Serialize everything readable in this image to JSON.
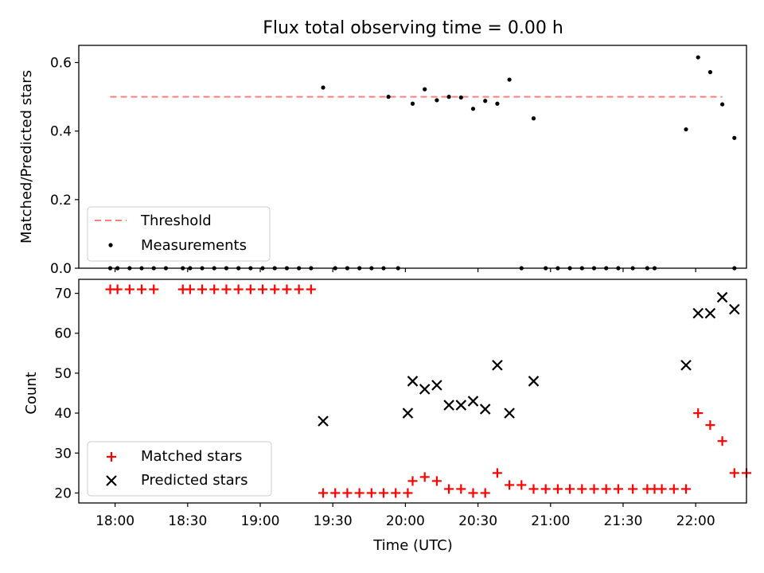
{
  "figure": {
    "title": "Flux total observing time = 0.00 h",
    "xlabel": "Time (UTC)",
    "xticks": [
      {
        "value": 1080,
        "label": "18:00"
      },
      {
        "value": 1110,
        "label": "18:30"
      },
      {
        "value": 1140,
        "label": "19:00"
      },
      {
        "value": 1170,
        "label": "19:30"
      },
      {
        "value": 1200,
        "label": "20:00"
      },
      {
        "value": 1230,
        "label": "20:30"
      },
      {
        "value": 1260,
        "label": "21:00"
      },
      {
        "value": 1290,
        "label": "21:30"
      },
      {
        "value": 1320,
        "label": "22:00"
      }
    ],
    "xlim": [
      1065,
      1341
    ]
  },
  "chart_data": [
    {
      "type": "scatter",
      "ylabel": "Matched/Predicted stars",
      "ylim": [
        0,
        0.65
      ],
      "yticks": [
        0.0,
        0.2,
        0.4,
        0.6
      ],
      "ytick_labels": [
        "0.0",
        "0.2",
        "0.4",
        "0.6"
      ],
      "legend": {
        "placement": "lower-left",
        "entries": [
          "Threshold",
          "Measurements"
        ]
      },
      "threshold": {
        "name": "Threshold",
        "value": 0.5,
        "x_range": [
          1078,
          1331
        ],
        "color": "#ff7f7f",
        "style": "dashed"
      },
      "series": [
        {
          "name": "Measurements",
          "color": "#000000",
          "marker": "dot",
          "points": [
            [
              1078,
              0
            ],
            [
              1081,
              0
            ],
            [
              1086,
              0
            ],
            [
              1091,
              0
            ],
            [
              1096,
              0
            ],
            [
              1101,
              0
            ],
            [
              1108,
              0
            ],
            [
              1111,
              0
            ],
            [
              1116,
              0
            ],
            [
              1121,
              0
            ],
            [
              1126,
              0
            ],
            [
              1131,
              0
            ],
            [
              1136,
              0
            ],
            [
              1141,
              0
            ],
            [
              1146,
              0
            ],
            [
              1151,
              0
            ],
            [
              1156,
              0
            ],
            [
              1161,
              0
            ],
            [
              1171,
              0
            ],
            [
              1176,
              0
            ],
            [
              1181,
              0
            ],
            [
              1186,
              0
            ],
            [
              1191,
              0
            ],
            [
              1197,
              0
            ],
            [
              1248,
              0
            ],
            [
              1258,
              0
            ],
            [
              1263,
              0
            ],
            [
              1268,
              0
            ],
            [
              1273,
              0
            ],
            [
              1278,
              0
            ],
            [
              1283,
              0
            ],
            [
              1288,
              0
            ],
            [
              1294,
              0
            ],
            [
              1300,
              0
            ],
            [
              1303,
              0
            ],
            [
              1336,
              0
            ],
            [
              1166,
              0.527
            ],
            [
              1193,
              0.5
            ],
            [
              1203,
              0.48
            ],
            [
              1208,
              0.522
            ],
            [
              1213,
              0.49
            ],
            [
              1218,
              0.5
            ],
            [
              1223,
              0.498
            ],
            [
              1228,
              0.465
            ],
            [
              1233,
              0.488
            ],
            [
              1238,
              0.48
            ],
            [
              1243,
              0.55
            ],
            [
              1253,
              0.437
            ],
            [
              1316,
              0.405
            ],
            [
              1321,
              0.615
            ],
            [
              1326,
              0.572
            ],
            [
              1331,
              0.478
            ],
            [
              1336,
              0.38
            ]
          ]
        }
      ]
    },
    {
      "type": "scatter",
      "ylabel": "Count",
      "ylim": [
        17.5,
        73.5
      ],
      "yticks": [
        20,
        30,
        40,
        50,
        60,
        70
      ],
      "ytick_labels": [
        "20",
        "30",
        "40",
        "50",
        "60",
        "70"
      ],
      "legend": {
        "placement": "lower-left",
        "entries": [
          "Matched stars",
          "Predicted stars"
        ]
      },
      "series": [
        {
          "name": "Matched stars",
          "color": "#ff0000",
          "marker": "plus",
          "points": [
            [
              1078,
              71
            ],
            [
              1081,
              71
            ],
            [
              1086,
              71
            ],
            [
              1091,
              71
            ],
            [
              1096,
              71
            ],
            [
              1108,
              71
            ],
            [
              1111,
              71
            ],
            [
              1116,
              71
            ],
            [
              1121,
              71
            ],
            [
              1126,
              71
            ],
            [
              1131,
              71
            ],
            [
              1136,
              71
            ],
            [
              1141,
              71
            ],
            [
              1146,
              71
            ],
            [
              1151,
              71
            ],
            [
              1156,
              71
            ],
            [
              1161,
              71
            ],
            [
              1166,
              20
            ],
            [
              1171,
              20
            ],
            [
              1176,
              20
            ],
            [
              1181,
              20
            ],
            [
              1186,
              20
            ],
            [
              1191,
              20
            ],
            [
              1196,
              20
            ],
            [
              1201,
              20
            ],
            [
              1203,
              23
            ],
            [
              1208,
              24
            ],
            [
              1213,
              23
            ],
            [
              1218,
              21
            ],
            [
              1223,
              21
            ],
            [
              1228,
              20
            ],
            [
              1233,
              20
            ],
            [
              1238,
              25
            ],
            [
              1243,
              22
            ],
            [
              1248,
              22
            ],
            [
              1253,
              21
            ],
            [
              1258,
              21
            ],
            [
              1263,
              21
            ],
            [
              1268,
              21
            ],
            [
              1273,
              21
            ],
            [
              1278,
              21
            ],
            [
              1283,
              21
            ],
            [
              1288,
              21
            ],
            [
              1294,
              21
            ],
            [
              1300,
              21
            ],
            [
              1303,
              21
            ],
            [
              1306,
              21
            ],
            [
              1311,
              21
            ],
            [
              1316,
              21
            ],
            [
              1321,
              40
            ],
            [
              1326,
              37
            ],
            [
              1331,
              33
            ],
            [
              1336,
              25
            ],
            [
              1341,
              25
            ]
          ]
        },
        {
          "name": "Predicted stars",
          "color": "#000000",
          "marker": "x",
          "points": [
            [
              1166,
              38
            ],
            [
              1201,
              40
            ],
            [
              1203,
              48
            ],
            [
              1208,
              46
            ],
            [
              1213,
              47
            ],
            [
              1218,
              42
            ],
            [
              1223,
              42
            ],
            [
              1228,
              43
            ],
            [
              1233,
              41
            ],
            [
              1238,
              52
            ],
            [
              1243,
              40
            ],
            [
              1253,
              48
            ],
            [
              1316,
              52
            ],
            [
              1321,
              65
            ],
            [
              1326,
              65
            ],
            [
              1331,
              69
            ],
            [
              1336,
              66
            ]
          ]
        }
      ]
    }
  ]
}
